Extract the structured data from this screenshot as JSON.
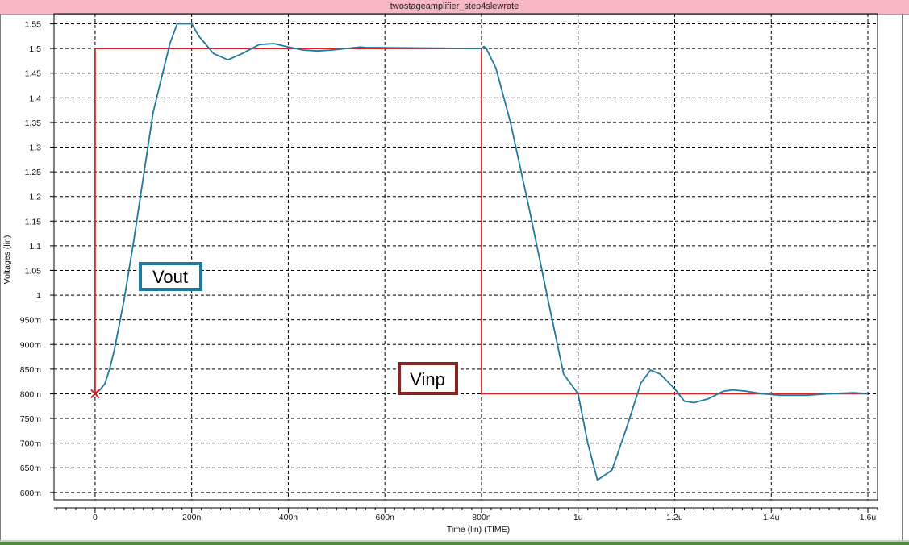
{
  "window": {
    "title": "twostageamplifier_step4slewrate"
  },
  "chart_data": {
    "type": "line",
    "title": "twostageamplifier_step4slewrate",
    "xlabel": "Time (lin) (TIME)",
    "ylabel": "Voltages (lin)",
    "xlim": [
      -8.5e-08,
      1.62e-06
    ],
    "ylim": [
      0.585,
      1.5705
    ],
    "grid": true,
    "x_ticks": [
      {
        "value": 0,
        "label": "0"
      },
      {
        "value": 2e-07,
        "label": "200n"
      },
      {
        "value": 4e-07,
        "label": "400n"
      },
      {
        "value": 6e-07,
        "label": "600n"
      },
      {
        "value": 8e-07,
        "label": "800n"
      },
      {
        "value": 1e-06,
        "label": "1u"
      },
      {
        "value": 1.2e-06,
        "label": "1.2u"
      },
      {
        "value": 1.4e-06,
        "label": "1.4u"
      },
      {
        "value": 1.6e-06,
        "label": "1.6u"
      }
    ],
    "y_ticks": [
      {
        "value": 0.6,
        "label": "600m"
      },
      {
        "value": 0.65,
        "label": "650m"
      },
      {
        "value": 0.7,
        "label": "700m"
      },
      {
        "value": 0.75,
        "label": "750m"
      },
      {
        "value": 0.8,
        "label": "800m"
      },
      {
        "value": 0.85,
        "label": "850m"
      },
      {
        "value": 0.9,
        "label": "900m"
      },
      {
        "value": 0.95,
        "label": "950m"
      },
      {
        "value": 1.0,
        "label": "1"
      },
      {
        "value": 1.05,
        "label": "1.05"
      },
      {
        "value": 1.1,
        "label": "1.1"
      },
      {
        "value": 1.15,
        "label": "1.15"
      },
      {
        "value": 1.2,
        "label": "1.2"
      },
      {
        "value": 1.25,
        "label": "1.25"
      },
      {
        "value": 1.3,
        "label": "1.3"
      },
      {
        "value": 1.35,
        "label": "1.35"
      },
      {
        "value": 1.4,
        "label": "1.4"
      },
      {
        "value": 1.45,
        "label": "1.45"
      },
      {
        "value": 1.5,
        "label": "1.5"
      },
      {
        "value": 1.55,
        "label": "1.55"
      }
    ],
    "series": [
      {
        "name": "Vout",
        "color": "#1f7a9e",
        "x": [
          0,
          1e-08,
          2e-08,
          3e-08,
          4e-08,
          6e-08,
          8e-08,
          1e-07,
          1.2e-07,
          1.4e-07,
          1.55e-07,
          1.7e-07,
          2e-07,
          2.15e-07,
          2.45e-07,
          2.75e-07,
          3.05e-07,
          3.4e-07,
          3.7e-07,
          4e-07,
          4.3e-07,
          4.6e-07,
          4.9e-07,
          5.2e-07,
          5.5e-07,
          5.6e-07,
          8e-07,
          8.05e-07,
          8.1e-07,
          8.3e-07,
          8.6e-07,
          9e-07,
          9.4e-07,
          9.7e-07,
          1e-06,
          1.02e-06,
          1.04e-06,
          1.07e-06,
          1.1e-06,
          1.13e-06,
          1.15e-06,
          1.17e-06,
          1.2e-06,
          1.22e-06,
          1.24e-06,
          1.27e-06,
          1.3e-06,
          1.32e-06,
          1.35e-06,
          1.38e-06,
          1.42e-06,
          1.47e-06,
          1.52e-06,
          1.57e-06,
          1.6e-06
        ],
        "y": [
          0.8,
          0.808,
          0.82,
          0.85,
          0.89,
          0.99,
          1.11,
          1.24,
          1.37,
          1.45,
          1.51,
          1.55,
          1.55,
          1.525,
          1.49,
          1.477,
          1.49,
          1.508,
          1.51,
          1.503,
          1.497,
          1.495,
          1.497,
          1.5,
          1.503,
          1.502,
          1.5,
          1.504,
          1.5,
          1.46,
          1.35,
          1.17,
          0.98,
          0.84,
          0.8,
          0.7,
          0.625,
          0.645,
          0.73,
          0.822,
          0.848,
          0.84,
          0.81,
          0.785,
          0.782,
          0.79,
          0.805,
          0.808,
          0.805,
          0.8,
          0.797,
          0.797,
          0.8,
          0.802,
          0.8
        ]
      },
      {
        "name": "Vinp",
        "color": "#d42626",
        "x": [
          0,
          0,
          8e-07,
          8e-07,
          1.6e-06
        ],
        "y": [
          0.8,
          1.5,
          1.5,
          0.8,
          0.8
        ]
      }
    ],
    "legend_labels": [
      "Vout",
      "Vinp"
    ],
    "marker": {
      "x": 0,
      "y": 0.8,
      "color": "#c62828",
      "shape": "x"
    }
  }
}
